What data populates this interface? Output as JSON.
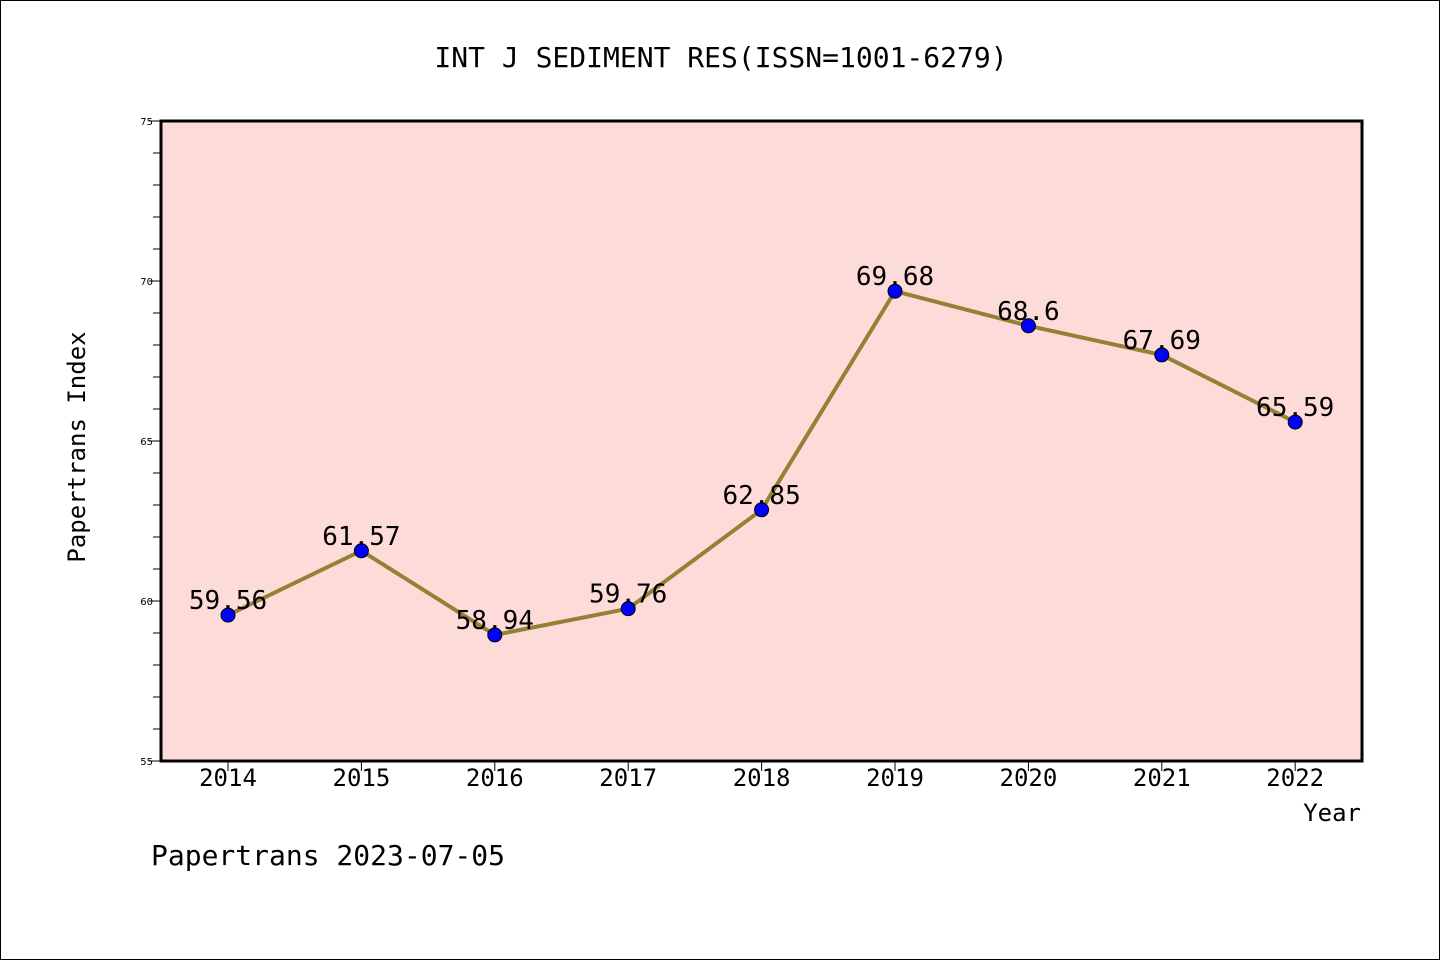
{
  "chart_data": {
    "type": "line",
    "title": "INT J SEDIMENT RES(ISSN=1001-6279)",
    "xlabel": "Year",
    "ylabel": "Papertrans Index",
    "categories": [
      "2014",
      "2015",
      "2016",
      "2017",
      "2018",
      "2019",
      "2020",
      "2021",
      "2022"
    ],
    "series": [
      {
        "values": [
          59.56,
          61.57,
          58.94,
          59.76,
          62.85,
          69.68,
          68.6,
          67.69,
          65.59
        ],
        "labels": [
          "59.56",
          "61.57",
          "58.94",
          "59.76",
          "62.85",
          "69.68",
          "68.6",
          "67.69",
          "65.59"
        ]
      }
    ],
    "ylim": [
      55,
      75
    ],
    "yticks": [
      "55",
      "60",
      "65",
      "70",
      "75"
    ],
    "grid": false,
    "colors": {
      "plot_background": "#fddbd8",
      "line": "#948135",
      "marker": "#0000ff"
    }
  },
  "footer": {
    "text": "Papertrans 2023-07-05"
  }
}
